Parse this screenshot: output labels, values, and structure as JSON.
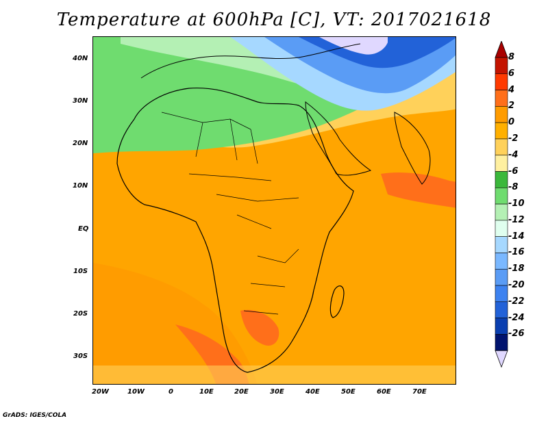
{
  "title": "Temperature at 600hPa [C], VT: 2017021618",
  "footer": "GrADS: IGES/COLA",
  "lat_labels": [
    "40N",
    "30N",
    "20N",
    "10N",
    "EQ",
    "10S",
    "20S",
    "30S"
  ],
  "lon_labels": [
    "20W",
    "10W",
    "0",
    "10E",
    "20E",
    "30E",
    "40E",
    "50E",
    "60E",
    "70E"
  ],
  "colorbar": {
    "labels": [
      "8",
      "6",
      "4",
      "2",
      "0",
      "-2",
      "-4",
      "-6",
      "-8",
      "-10",
      "-12",
      "-14",
      "-16",
      "-18",
      "-20",
      "-22",
      "-24",
      "-26"
    ],
    "colors": [
      "#c41400",
      "#ff3a00",
      "#ff6f1a",
      "#ff9c00",
      "#ffb000",
      "#ffd15a",
      "#fff0a0",
      "#3bb83b",
      "#6fdc6f",
      "#b4f0b4",
      "#e0ffef",
      "#a6d8ff",
      "#7ab8ff",
      "#5a9cf5",
      "#3d82f0",
      "#2262d8",
      "#0a3fb0",
      "#00136e"
    ],
    "over_color": "#a80000",
    "under_color": "#e0d8ff"
  }
}
